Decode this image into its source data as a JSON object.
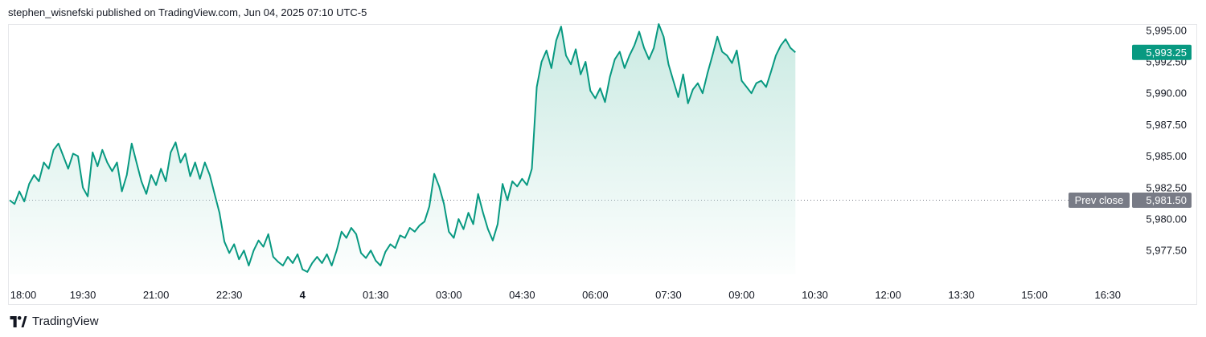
{
  "header": {
    "published": "stephen_wisnefski published on TradingView.com, Jun 04, 2025 07:10 UTC-5"
  },
  "footer": {
    "brand": "TradingView"
  },
  "colors": {
    "line": "#089981",
    "fill_top": "#c7e9e1",
    "prev_close": "#787b86",
    "last_price_bg": "#089981",
    "grid_text": "#131722"
  },
  "chart_data": {
    "type": "area",
    "x_tick_labels": [
      "18:00",
      "19:30",
      "21:00",
      "22:30",
      "4",
      "01:30",
      "03:00",
      "04:30",
      "06:00",
      "07:30",
      "09:00",
      "10:30",
      "12:00",
      "13:30",
      "15:00",
      "16:30"
    ],
    "y_tick_labels": [
      "5,995.00",
      "5,992.50",
      "5,990.00",
      "5,987.50",
      "5,985.00",
      "5,982.50",
      "5,980.00",
      "5,977.50"
    ],
    "y_ticks": [
      5995.0,
      5992.5,
      5990.0,
      5987.5,
      5985.0,
      5982.5,
      5980.0,
      5977.5
    ],
    "ylim": [
      5975.6,
      5995.5
    ],
    "prev_close": {
      "label": "Prev close",
      "value": 5981.5,
      "value_label": "5,981.50"
    },
    "last_price": {
      "value": 5993.25,
      "value_label": "5,993.25"
    },
    "series": [
      {
        "values": [
          [
            18.0,
            5981.5
          ],
          [
            18.1,
            5981.2
          ],
          [
            18.2,
            5982.2
          ],
          [
            18.3,
            5981.4
          ],
          [
            18.4,
            5982.8
          ],
          [
            18.5,
            5983.5
          ],
          [
            18.6,
            5983.0
          ],
          [
            18.7,
            5984.5
          ],
          [
            18.8,
            5984.0
          ],
          [
            18.9,
            5985.5
          ],
          [
            19.0,
            5986.0
          ],
          [
            19.1,
            5985.0
          ],
          [
            19.2,
            5984.0
          ],
          [
            19.3,
            5985.2
          ],
          [
            19.4,
            5985.0
          ],
          [
            19.5,
            5982.5
          ],
          [
            19.6,
            5981.8
          ],
          [
            19.7,
            5985.3
          ],
          [
            19.8,
            5984.2
          ],
          [
            19.9,
            5985.5
          ],
          [
            20.0,
            5984.5
          ],
          [
            20.1,
            5983.8
          ],
          [
            20.2,
            5984.5
          ],
          [
            20.3,
            5982.2
          ],
          [
            20.4,
            5983.5
          ],
          [
            20.5,
            5986.0
          ],
          [
            20.6,
            5984.5
          ],
          [
            20.7,
            5983.0
          ],
          [
            20.8,
            5982.0
          ],
          [
            20.9,
            5983.5
          ],
          [
            21.0,
            5982.7
          ],
          [
            21.1,
            5984.0
          ],
          [
            21.2,
            5983.0
          ],
          [
            21.3,
            5985.3
          ],
          [
            21.4,
            5986.1
          ],
          [
            21.5,
            5984.5
          ],
          [
            21.6,
            5985.2
          ],
          [
            21.7,
            5983.4
          ],
          [
            21.8,
            5984.5
          ],
          [
            21.9,
            5983.2
          ],
          [
            22.0,
            5984.5
          ],
          [
            22.1,
            5983.5
          ],
          [
            22.2,
            5982.0
          ],
          [
            22.3,
            5980.5
          ],
          [
            22.4,
            5978.2
          ],
          [
            22.5,
            5977.3
          ],
          [
            22.6,
            5978.0
          ],
          [
            22.7,
            5976.8
          ],
          [
            22.8,
            5977.5
          ],
          [
            22.9,
            5976.3
          ],
          [
            23.0,
            5977.5
          ],
          [
            23.1,
            5978.3
          ],
          [
            23.2,
            5977.8
          ],
          [
            23.3,
            5978.8
          ],
          [
            23.4,
            5977.0
          ],
          [
            23.5,
            5976.6
          ],
          [
            23.6,
            5976.3
          ],
          [
            23.7,
            5977.0
          ],
          [
            23.8,
            5976.5
          ],
          [
            23.9,
            5977.2
          ],
          [
            24.0,
            5976.0
          ],
          [
            24.1,
            5975.8
          ],
          [
            24.2,
            5976.5
          ],
          [
            24.3,
            5977.0
          ],
          [
            24.4,
            5976.5
          ],
          [
            24.5,
            5977.2
          ],
          [
            24.6,
            5976.3
          ],
          [
            24.7,
            5977.5
          ],
          [
            24.8,
            5979.0
          ],
          [
            24.9,
            5978.5
          ],
          [
            25.0,
            5979.3
          ],
          [
            25.1,
            5978.8
          ],
          [
            25.2,
            5977.3
          ],
          [
            25.3,
            5976.9
          ],
          [
            25.4,
            5977.5
          ],
          [
            25.5,
            5976.7
          ],
          [
            25.6,
            5976.3
          ],
          [
            25.7,
            5977.4
          ],
          [
            25.8,
            5978.0
          ],
          [
            25.9,
            5977.7
          ],
          [
            26.0,
            5978.7
          ],
          [
            26.1,
            5978.5
          ],
          [
            26.2,
            5979.3
          ],
          [
            26.3,
            5979.0
          ],
          [
            26.4,
            5979.5
          ],
          [
            26.5,
            5979.8
          ],
          [
            26.6,
            5981.0
          ],
          [
            26.7,
            5983.6
          ],
          [
            26.8,
            5982.6
          ],
          [
            26.9,
            5981.2
          ],
          [
            27.0,
            5979.0
          ],
          [
            27.1,
            5978.5
          ],
          [
            27.2,
            5980.0
          ],
          [
            27.3,
            5979.2
          ],
          [
            27.4,
            5980.5
          ],
          [
            27.5,
            5979.6
          ],
          [
            27.6,
            5982.0
          ],
          [
            27.7,
            5980.5
          ],
          [
            27.8,
            5979.2
          ],
          [
            27.9,
            5978.3
          ],
          [
            28.0,
            5979.6
          ],
          [
            28.1,
            5982.8
          ],
          [
            28.2,
            5981.5
          ],
          [
            28.3,
            5983.0
          ],
          [
            28.4,
            5982.6
          ],
          [
            28.5,
            5983.2
          ],
          [
            28.6,
            5982.7
          ],
          [
            28.7,
            5984.0
          ],
          [
            28.8,
            5990.5
          ],
          [
            28.9,
            5992.5
          ],
          [
            29.0,
            5993.4
          ],
          [
            29.1,
            5992.0
          ],
          [
            29.2,
            5994.2
          ],
          [
            29.3,
            5995.3
          ],
          [
            29.4,
            5993.0
          ],
          [
            29.5,
            5992.3
          ],
          [
            29.6,
            5993.5
          ],
          [
            29.7,
            5991.5
          ],
          [
            29.8,
            5992.5
          ],
          [
            29.9,
            5990.2
          ],
          [
            30.0,
            5989.6
          ],
          [
            30.1,
            5990.4
          ],
          [
            30.2,
            5989.3
          ],
          [
            30.3,
            5991.3
          ],
          [
            30.4,
            5992.7
          ],
          [
            30.5,
            5993.3
          ],
          [
            30.6,
            5992.0
          ],
          [
            30.7,
            5993.0
          ],
          [
            30.8,
            5993.8
          ],
          [
            30.9,
            5994.9
          ],
          [
            31.0,
            5993.6
          ],
          [
            31.1,
            5992.7
          ],
          [
            31.2,
            5993.6
          ],
          [
            31.3,
            5995.5
          ],
          [
            31.4,
            5994.5
          ],
          [
            31.5,
            5992.3
          ],
          [
            31.6,
            5991.0
          ],
          [
            31.7,
            5989.7
          ],
          [
            31.8,
            5991.5
          ],
          [
            31.9,
            5989.2
          ],
          [
            32.0,
            5990.3
          ],
          [
            32.1,
            5990.8
          ],
          [
            32.2,
            5990.0
          ],
          [
            32.3,
            5991.6
          ],
          [
            32.4,
            5993.0
          ],
          [
            32.5,
            5994.5
          ],
          [
            32.6,
            5993.3
          ],
          [
            32.7,
            5993.0
          ],
          [
            32.8,
            5992.4
          ],
          [
            32.9,
            5993.4
          ],
          [
            33.0,
            5991.0
          ],
          [
            33.1,
            5990.5
          ],
          [
            33.2,
            5990.0
          ],
          [
            33.3,
            5990.8
          ],
          [
            33.4,
            5991.0
          ],
          [
            33.5,
            5990.5
          ],
          [
            33.6,
            5991.7
          ],
          [
            33.7,
            5993.0
          ],
          [
            33.8,
            5993.8
          ],
          [
            33.9,
            5994.3
          ],
          [
            34.0,
            5993.6
          ],
          [
            34.1,
            5993.25
          ]
        ]
      }
    ]
  }
}
